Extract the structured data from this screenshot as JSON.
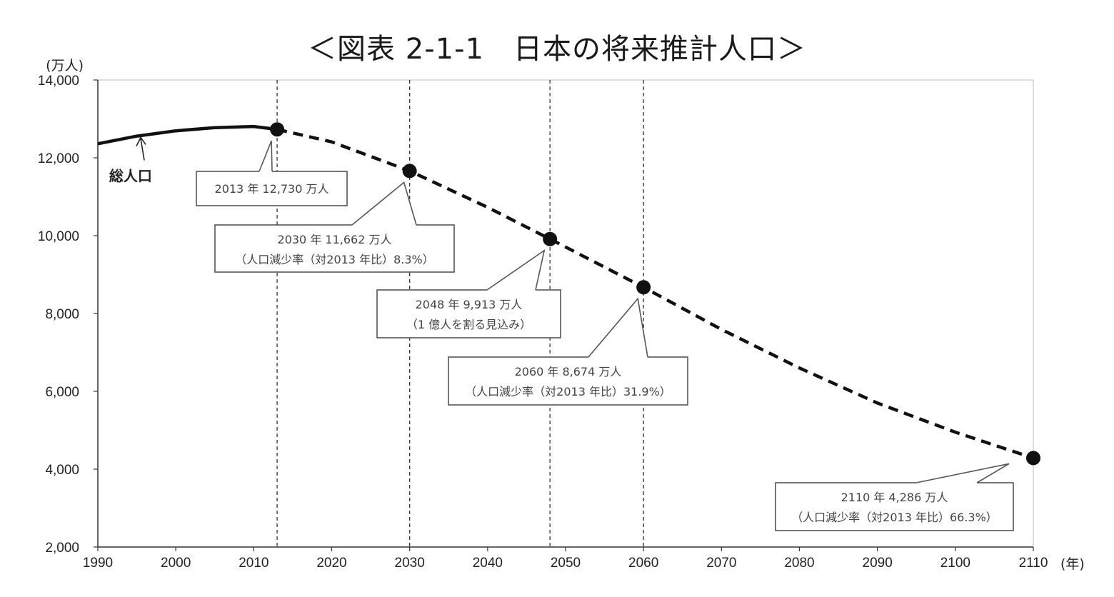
{
  "chart_data": {
    "type": "line",
    "title": "＜図表 2-1-1　日本の将来推計人口＞",
    "y_unit": "(万人)",
    "x_unit": "(年)",
    "xlim": [
      1990,
      2110
    ],
    "ylim": [
      2000,
      14000
    ],
    "x_ticks": [
      1990,
      2000,
      2010,
      2020,
      2030,
      2040,
      2050,
      2060,
      2070,
      2080,
      2090,
      2100,
      2110
    ],
    "x_tick_labels": [
      "1990",
      "2000",
      "2010",
      "2020",
      "2030",
      "2040",
      "2050",
      "2060",
      "2070",
      "2080",
      "2090",
      "2100",
      "2110"
    ],
    "y_ticks": [
      2000,
      4000,
      6000,
      8000,
      10000,
      12000,
      14000
    ],
    "y_tick_labels": [
      "2,000",
      "4,000",
      "6,000",
      "8,000",
      "10,000",
      "12,000",
      "14,000"
    ],
    "grid": false,
    "vertical_reference_years": [
      2013,
      2030,
      2048,
      2060
    ],
    "series": [
      {
        "name": "総人口",
        "style": "solid",
        "x": [
          1990,
          1995,
          2000,
          2005,
          2010,
          2013
        ],
        "y": [
          12361,
          12557,
          12693,
          12777,
          12806,
          12730
        ]
      },
      {
        "style": "dashed",
        "x": [
          2013,
          2020,
          2030,
          2040,
          2048,
          2050,
          2060,
          2070,
          2080,
          2090,
          2100,
          2110
        ],
        "y": [
          12730,
          12410,
          11662,
          10728,
          9913,
          9708,
          8674,
          7590,
          6600,
          5700,
          4950,
          4286
        ]
      }
    ],
    "highlight_points": [
      {
        "x": 2013,
        "y": 12730
      },
      {
        "x": 2030,
        "y": 11662
      },
      {
        "x": 2048,
        "y": 9913
      },
      {
        "x": 2060,
        "y": 8674
      },
      {
        "x": 2110,
        "y": 4286
      }
    ],
    "annotations": [
      {
        "x": 2013,
        "y": 12730,
        "lines": [
          "2013 年  12,730 万人"
        ]
      },
      {
        "x": 2030,
        "y": 11662,
        "lines": [
          "2030 年  11,662 万人",
          "（人口減少率（対2013 年比）8.3%）"
        ]
      },
      {
        "x": 2048,
        "y": 9913,
        "lines": [
          "2048 年  9,913 万人",
          "（1 億人を割る見込み）"
        ]
      },
      {
        "x": 2060,
        "y": 8674,
        "lines": [
          "2060 年  8,674 万人",
          "（人口減少率（対2013 年比）31.9%）"
        ]
      },
      {
        "x": 2110,
        "y": 4286,
        "lines": [
          "2110 年  4,286 万人",
          "（人口減少率（対2013 年比）66.3%）"
        ]
      }
    ],
    "colors": {
      "line": "#111111",
      "axis": "#333333",
      "box_border": "#555555",
      "text": "#444444"
    }
  }
}
